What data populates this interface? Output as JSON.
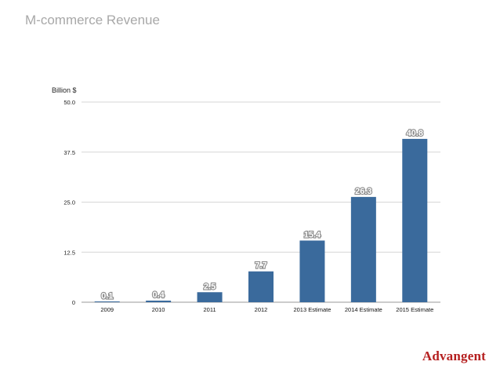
{
  "slide": {
    "title": "M-commerce Revenue",
    "logo_text": "Advangent"
  },
  "chart_data": {
    "type": "bar",
    "ylabel": "Billion $",
    "xlabel": "",
    "title": "",
    "categories": [
      "2009",
      "2010",
      "2011",
      "2012",
      "2013 Estimate",
      "2014 Estimate",
      "2015 Estimate"
    ],
    "values": [
      0.1,
      0.4,
      2.5,
      7.7,
      15.4,
      26.3,
      40.8
    ],
    "data_labels": [
      "0.1",
      "0.4",
      "2.5",
      "7.7",
      "15.4",
      "26.3",
      "40.8"
    ],
    "ylim": [
      0,
      50
    ],
    "yticks": [
      0,
      12.5,
      25,
      37.5,
      50
    ],
    "ytick_labels": [
      "0",
      "12.5",
      "25.0",
      "37.5",
      "50.0"
    ],
    "grid": true,
    "legend": "none",
    "colors": {
      "bar": "#3a6a9c",
      "grid": "#d6d6d6",
      "axis": "#9a9a9a"
    }
  }
}
